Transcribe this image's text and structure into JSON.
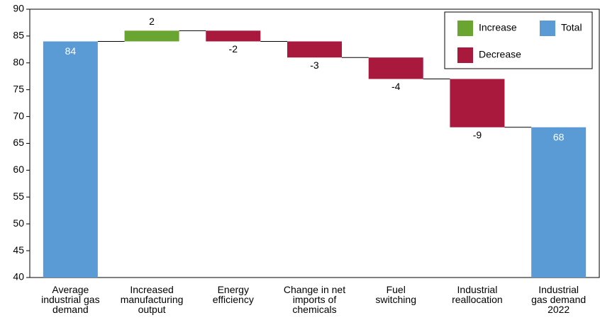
{
  "chart_data": {
    "type": "waterfall",
    "categories": [
      "Average\nindustrial gas\ndemand",
      "Increased\nmanufacturing\noutput",
      "Energy\nefficiency",
      "Change in net\nimports of\nchemicals",
      "Fuel\nswitching",
      "Industrial\nreallocation",
      "Industrial\ngas demand\n2022"
    ],
    "values": [
      84,
      2,
      -2,
      -3,
      -4,
      -9,
      68
    ],
    "measures": [
      "total",
      "relative",
      "relative",
      "relative",
      "relative",
      "relative",
      "total"
    ],
    "colors": {
      "increase": "#6aa532",
      "decrease": "#a8193d",
      "total": "#5b9bd5"
    },
    "legend": [
      {
        "name": "Increase",
        "kind": "increase"
      },
      {
        "name": "Total",
        "kind": "total"
      },
      {
        "name": "Decrease",
        "kind": "decrease"
      }
    ],
    "legend_position": "upper right",
    "ylim": [
      40,
      90
    ],
    "yticks": [
      40,
      45,
      50,
      55,
      60,
      65,
      70,
      75,
      80,
      85,
      90
    ]
  }
}
